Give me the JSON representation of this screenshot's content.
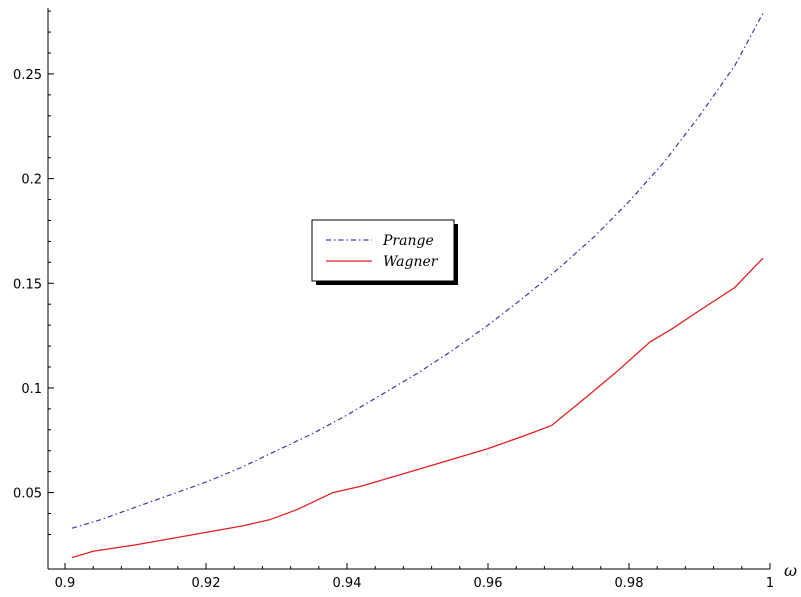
{
  "chart_data": {
    "type": "line",
    "title": "",
    "xlabel": "ω",
    "ylabel": "",
    "xlim": [
      0.9,
      1.0
    ],
    "ylim": [
      0.0135,
      0.2815
    ],
    "x_ticks": [
      0.9,
      0.92,
      0.94,
      0.96,
      0.98,
      1
    ],
    "x_tick_labels": [
      "0.9",
      "0.92",
      "0.94",
      "0.96",
      "0.98",
      "1"
    ],
    "y_ticks": [
      0.05,
      0.1,
      0.15,
      0.2,
      0.25
    ],
    "y_tick_labels": [
      "0.05",
      "0.1",
      "0.15",
      "0.2",
      "0.25"
    ],
    "grid": false,
    "legend_position": "center-left",
    "series": [
      {
        "name": "Prange",
        "style": "dash-dot",
        "color": "#3a3ab0",
        "x": [
          0.901,
          0.905,
          0.91,
          0.915,
          0.92,
          0.925,
          0.93,
          0.935,
          0.94,
          0.945,
          0.95,
          0.955,
          0.96,
          0.965,
          0.97,
          0.975,
          0.98,
          0.985,
          0.99,
          0.995,
          0.999
        ],
        "y": [
          0.033,
          0.037,
          0.043,
          0.049,
          0.055,
          0.062,
          0.07,
          0.078,
          0.087,
          0.097,
          0.107,
          0.118,
          0.13,
          0.143,
          0.157,
          0.172,
          0.189,
          0.208,
          0.23,
          0.254,
          0.279
        ]
      },
      {
        "name": "Wagner",
        "style": "solid",
        "color": "#e02020",
        "x": [
          0.901,
          0.904,
          0.91,
          0.915,
          0.92,
          0.925,
          0.929,
          0.933,
          0.938,
          0.942,
          0.946,
          0.95,
          0.955,
          0.96,
          0.965,
          0.969,
          0.973,
          0.978,
          0.983,
          0.986,
          0.99,
          0.995,
          0.999
        ],
        "y": [
          0.019,
          0.022,
          0.025,
          0.028,
          0.031,
          0.034,
          0.037,
          0.042,
          0.05,
          0.053,
          0.057,
          0.061,
          0.066,
          0.071,
          0.077,
          0.082,
          0.093,
          0.107,
          0.122,
          0.128,
          0.137,
          0.148,
          0.162
        ]
      }
    ]
  }
}
